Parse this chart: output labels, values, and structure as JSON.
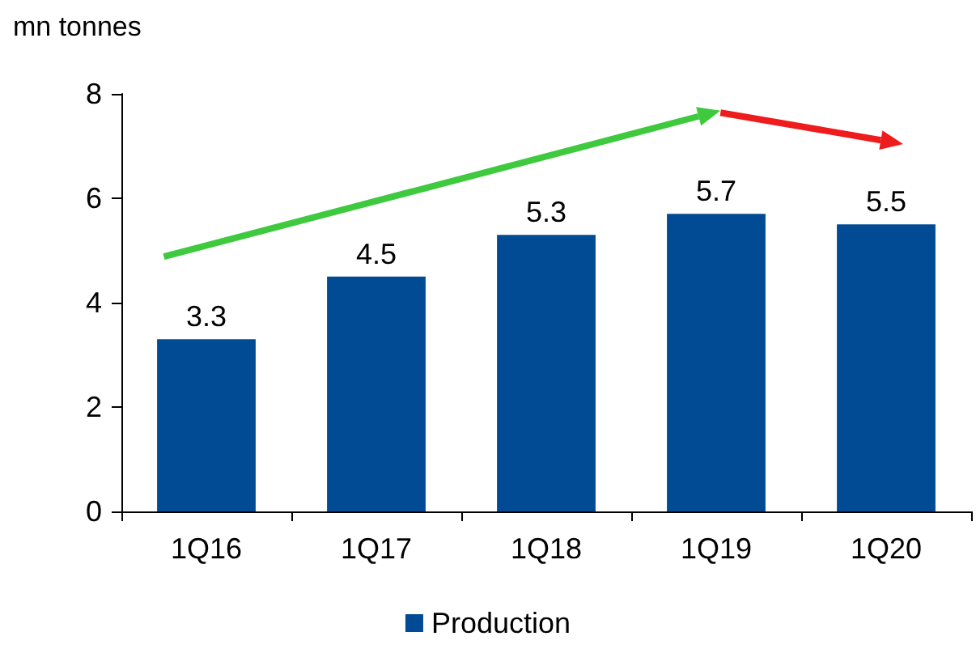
{
  "chart_data": {
    "type": "bar",
    "ylabel": "mn tonnes",
    "categories": [
      "1Q16",
      "1Q17",
      "1Q18",
      "1Q19",
      "1Q20"
    ],
    "series": [
      {
        "name": "Production",
        "color": "#004b93",
        "values": [
          3.3,
          4.5,
          5.3,
          5.7,
          5.5
        ]
      }
    ],
    "ylim": [
      0,
      8
    ],
    "yticks": [
      0,
      2,
      4,
      6,
      8
    ],
    "grid": false,
    "legend": "bottom",
    "data_labels": true
  }
}
